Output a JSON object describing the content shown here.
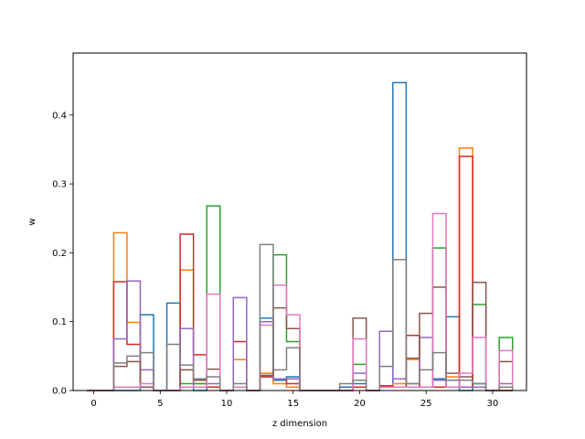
{
  "chart_data": {
    "type": "histogram-step",
    "xlabel": "z dimension",
    "ylabel": "w",
    "xlim": [
      -1.55,
      32.55
    ],
    "ylim": [
      0,
      0.49
    ],
    "xticks": [
      0,
      5,
      10,
      15,
      20,
      25,
      30
    ],
    "yticks": [
      0.0,
      0.1,
      0.2,
      0.3,
      0.4
    ],
    "bin_edges": [
      -0.5,
      0.5,
      1.5,
      2.5,
      3.5,
      4.5,
      5.5,
      6.5,
      7.5,
      8.5,
      9.5,
      10.5,
      11.5,
      12.5,
      13.5,
      14.5,
      15.5,
      16.5,
      17.5,
      18.5,
      19.5,
      20.5,
      21.5,
      22.5,
      23.5,
      24.5,
      25.5,
      26.5,
      27.5,
      28.5,
      29.5,
      30.5,
      31.5
    ],
    "series": [
      {
        "color": "#1f77b4",
        "values": [
          0,
          0,
          0,
          0,
          0.11,
          0,
          0.127,
          0.005,
          0,
          0.005,
          0,
          0.005,
          0,
          0.105,
          0.015,
          0.02,
          0,
          0,
          0,
          0.005,
          0.01,
          0,
          0.005,
          0.447,
          0.005,
          0.005,
          0.017,
          0.107,
          0,
          0.01,
          0,
          0
        ]
      },
      {
        "color": "#ff7f0e",
        "values": [
          0,
          0,
          0.229,
          0.099,
          0.005,
          0,
          0,
          0.175,
          0.01,
          0.005,
          0,
          0.045,
          0,
          0.025,
          0.01,
          0.005,
          0,
          0,
          0,
          0,
          0.005,
          0,
          0.005,
          0.01,
          0.045,
          0.005,
          0.005,
          0.02,
          0.352,
          0.005,
          0,
          0
        ]
      },
      {
        "color": "#2ca02c",
        "values": [
          0,
          0,
          0.005,
          0.005,
          0.005,
          0,
          0,
          0.01,
          0.01,
          0.268,
          0,
          0.005,
          0,
          0.02,
          0.197,
          0.071,
          0,
          0,
          0,
          0,
          0.038,
          0,
          0.005,
          0.005,
          0.005,
          0.005,
          0.207,
          0.005,
          0.005,
          0.125,
          0,
          0.077
        ]
      },
      {
        "color": "#d62728",
        "values": [
          0,
          0,
          0.158,
          0.067,
          0.005,
          0,
          0,
          0.227,
          0.052,
          0.005,
          0,
          0.071,
          0,
          0.02,
          0.017,
          0.01,
          0,
          0,
          0,
          0,
          0.005,
          0,
          0.007,
          0.005,
          0.08,
          0.005,
          0.005,
          0.005,
          0.34,
          0.005,
          0,
          0
        ]
      },
      {
        "color": "#9467bd",
        "values": [
          0,
          0,
          0.075,
          0.159,
          0.03,
          0,
          0,
          0.09,
          0.005,
          0.01,
          0,
          0.135,
          0,
          0.1,
          0.017,
          0.017,
          0,
          0,
          0,
          0,
          0.025,
          0,
          0.086,
          0.017,
          0.01,
          0.077,
          0.015,
          0.005,
          0.005,
          0.005,
          0,
          0.01
        ]
      },
      {
        "color": "#8c564b",
        "values": [
          0,
          0,
          0.035,
          0.042,
          0.005,
          0,
          0,
          0.03,
          0.015,
          0.031,
          0,
          0.005,
          0,
          0.022,
          0.12,
          0.09,
          0,
          0,
          0,
          0,
          0.105,
          0,
          0.005,
          0.005,
          0.047,
          0.112,
          0.15,
          0.025,
          0.02,
          0.157,
          0,
          0.042
        ]
      },
      {
        "color": "#e377c2",
        "values": [
          0,
          0,
          0.005,
          0.005,
          0.01,
          0,
          0,
          0.005,
          0.005,
          0.14,
          0,
          0.005,
          0,
          0.095,
          0.153,
          0.11,
          0,
          0,
          0,
          0,
          0.075,
          0,
          0.005,
          0.005,
          0.005,
          0.005,
          0.257,
          0.005,
          0.025,
          0.077,
          0,
          0.058
        ]
      },
      {
        "color": "#7f7f7f",
        "values": [
          0,
          0,
          0.04,
          0.05,
          0.055,
          0,
          0.067,
          0.037,
          0.017,
          0.02,
          0,
          0.01,
          0,
          0.212,
          0.03,
          0.062,
          0,
          0,
          0,
          0.01,
          0.015,
          0,
          0.035,
          0.19,
          0.01,
          0.03,
          0.055,
          0.015,
          0.015,
          0.01,
          0,
          0.005
        ]
      }
    ]
  }
}
